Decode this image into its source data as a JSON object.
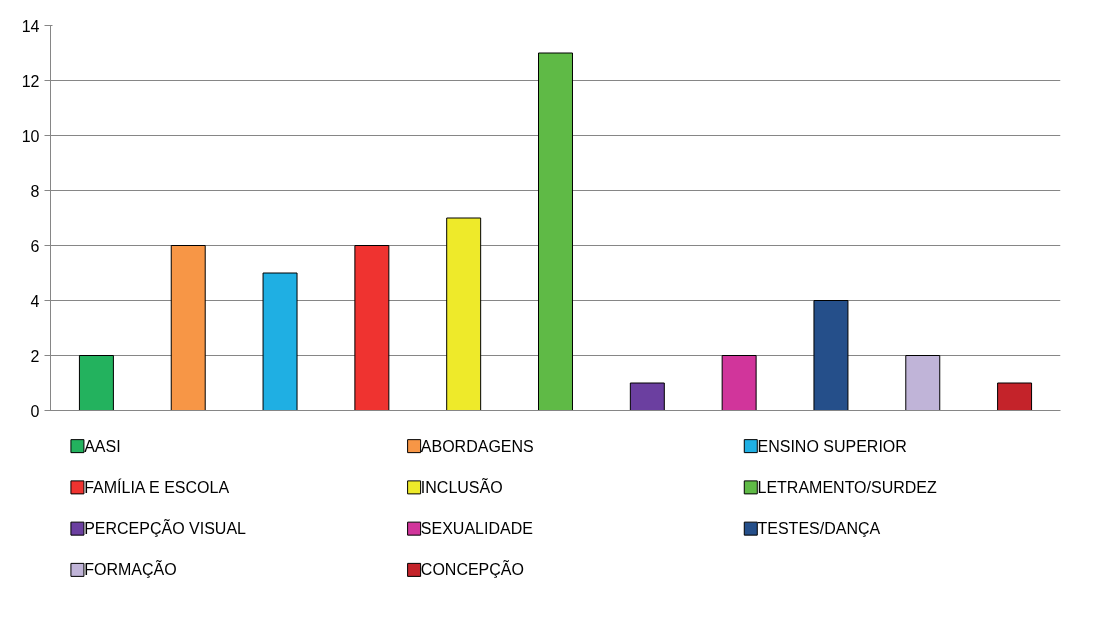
{
  "chart_data": {
    "type": "bar",
    "categories": [
      null,
      null,
      null,
      null,
      null,
      null,
      null,
      null,
      null,
      null,
      null
    ],
    "series": [
      {
        "name": "AASI",
        "color": "#23b25e",
        "values": [
          2,
          null,
          null,
          null,
          null,
          null,
          null,
          null,
          null,
          null,
          null
        ]
      },
      {
        "name": "ABORDAGENS",
        "color": "#f79646",
        "values": [
          null,
          6,
          null,
          null,
          null,
          null,
          null,
          null,
          null,
          null,
          null
        ]
      },
      {
        "name": "ENSINO SUPERIOR",
        "color": "#1fafe3",
        "values": [
          null,
          null,
          5,
          null,
          null,
          null,
          null,
          null,
          null,
          null,
          null
        ]
      },
      {
        "name": "FAMÍLIA E ESCOLA",
        "color": "#ef3330",
        "values": [
          null,
          null,
          null,
          6,
          null,
          null,
          null,
          null,
          null,
          null,
          null
        ]
      },
      {
        "name": "INCLUSÃO",
        "color": "#eeea2a",
        "values": [
          null,
          null,
          null,
          null,
          7,
          null,
          null,
          null,
          null,
          null,
          null
        ]
      },
      {
        "name": "LETRAMENTO/SURDEZ",
        "color": "#5fba46",
        "values": [
          null,
          null,
          null,
          null,
          null,
          13,
          null,
          null,
          null,
          null,
          null
        ]
      },
      {
        "name": "PERCEPÇÃO VISUAL",
        "color": "#6b3fa0",
        "values": [
          null,
          null,
          null,
          null,
          null,
          null,
          1,
          null,
          null,
          null,
          null
        ]
      },
      {
        "name": "SEXUALIDADE",
        "color": "#d1359b",
        "values": [
          null,
          null,
          null,
          null,
          null,
          null,
          null,
          2,
          null,
          null,
          null
        ]
      },
      {
        "name": "TESTES/DANÇA",
        "color": "#254f8a",
        "values": [
          null,
          null,
          null,
          null,
          null,
          null,
          null,
          null,
          4,
          null,
          null
        ]
      },
      {
        "name": "FORMAÇÃO",
        "color": "#c0b4d8",
        "values": [
          null,
          null,
          null,
          null,
          null,
          null,
          null,
          null,
          null,
          2,
          null
        ]
      },
      {
        "name": "CONCEPÇÃO",
        "color": "#c4232a",
        "values": [
          null,
          null,
          null,
          null,
          null,
          null,
          null,
          null,
          null,
          null,
          1
        ]
      }
    ],
    "ylim": [
      0,
      14
    ],
    "yticks": [
      0,
      2,
      4,
      6,
      8,
      10,
      12,
      14
    ],
    "grid": "y",
    "legend": "bottom",
    "tick_labels": "y"
  }
}
